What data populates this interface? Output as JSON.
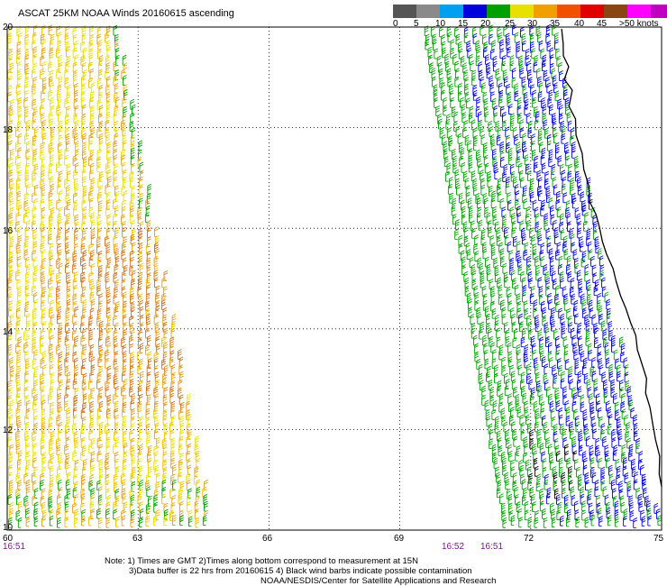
{
  "title": "ASCAT 25KM NOAA Winds 20160615 ascending",
  "colorbar": {
    "colors": [
      "#555555",
      "#8a8a8a",
      "#00a0f0",
      "#0000dd",
      "#00a000",
      "#e8e000",
      "#f0a000",
      "#f05000",
      "#e00000",
      "#8b4513",
      "#ff00ff",
      "#c000c0",
      "#5000a0"
    ],
    "labels": [
      "0",
      "5",
      "10",
      "15",
      "20",
      "25",
      "30",
      "35",
      "40",
      "45",
      ">50 knots"
    ]
  },
  "latitudes": [
    "20",
    "18",
    "16",
    "14",
    "12",
    "10"
  ],
  "longitudes": [
    "60",
    "63",
    "66",
    "69",
    "72",
    "75"
  ],
  "times": [
    "16:51",
    "16:52",
    "16:51"
  ],
  "notes": {
    "line1": "Note: 1) Times are GMT 2)Times along bottom correspond to measurement at 15N",
    "line2": "3)Data buffer is 22 hrs from 20160615 4) Black wind barbs indicate possible contamination",
    "line3": "NOAA/NESDIS/Center for Satellite Applications and Research"
  },
  "map": {
    "lat_range": [
      10,
      20
    ],
    "lon_range": [
      60,
      75
    ],
    "grid": true,
    "left_swath_colors": [
      "#e8e000",
      "#f0c000",
      "#e0a020",
      "#d88020",
      "#c87018",
      "#00a000"
    ],
    "right_swath_colors": [
      "#00a000",
      "#0000dd",
      "#00a000",
      "#0000dd",
      "#000000"
    ],
    "coast_color": "#000000"
  }
}
